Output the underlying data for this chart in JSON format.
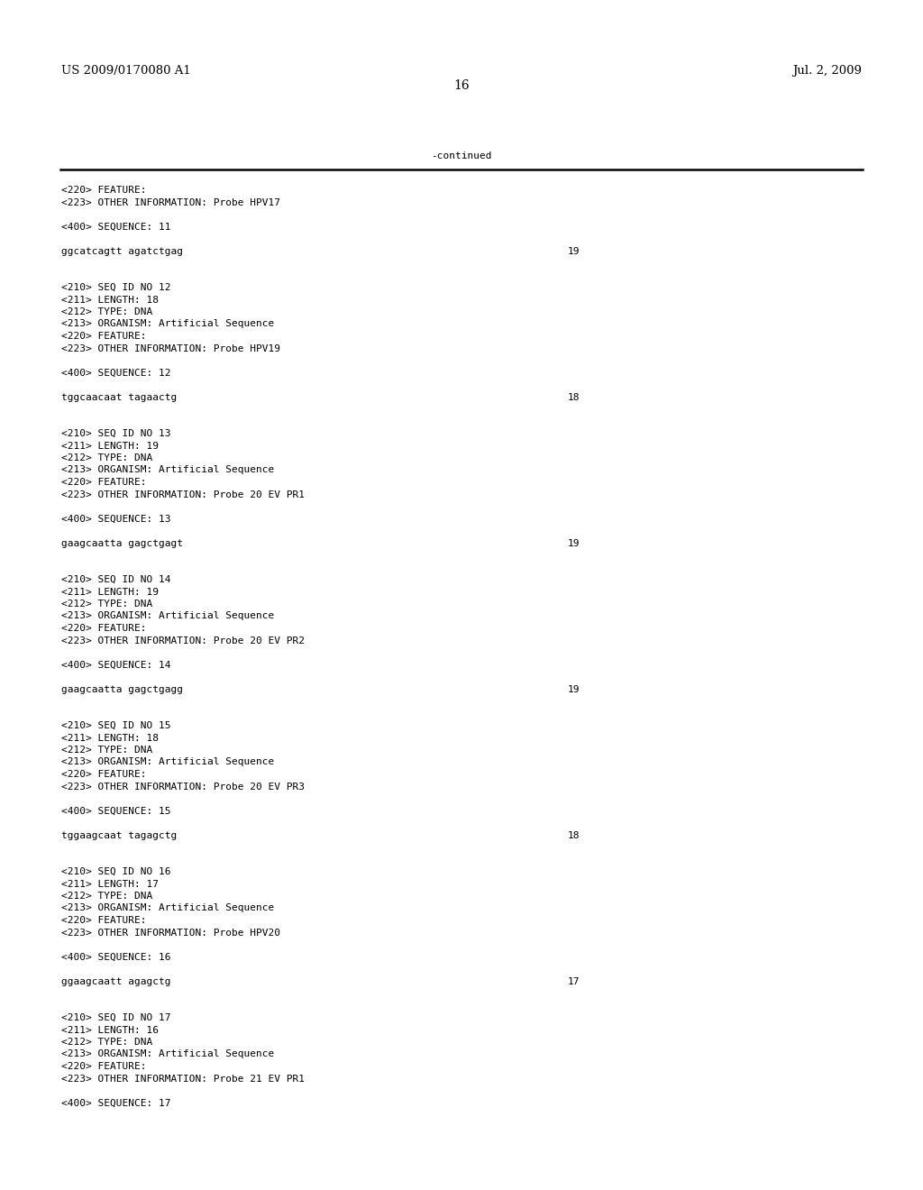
{
  "background_color": "#ffffff",
  "header_left": "US 2009/0170080 A1",
  "header_right": "Jul. 2, 2009",
  "page_number": "16",
  "continued_label": "-continued",
  "header_fontsize": 9.5,
  "mono_fontsize": 8.0,
  "page_num_fontsize": 10,
  "content_lines": [
    {
      "text": "<220> FEATURE:",
      "col": "left"
    },
    {
      "text": "<223> OTHER INFORMATION: Probe HPV17",
      "col": "left"
    },
    {
      "text": "",
      "col": "left"
    },
    {
      "text": "<400> SEQUENCE: 11",
      "col": "left"
    },
    {
      "text": "",
      "col": "left"
    },
    {
      "text": "ggcatcagtt agatctgag",
      "col": "left",
      "num": "19"
    },
    {
      "text": "",
      "col": "left"
    },
    {
      "text": "",
      "col": "left"
    },
    {
      "text": "<210> SEQ ID NO 12",
      "col": "left"
    },
    {
      "text": "<211> LENGTH: 18",
      "col": "left"
    },
    {
      "text": "<212> TYPE: DNA",
      "col": "left"
    },
    {
      "text": "<213> ORGANISM: Artificial Sequence",
      "col": "left"
    },
    {
      "text": "<220> FEATURE:",
      "col": "left"
    },
    {
      "text": "<223> OTHER INFORMATION: Probe HPV19",
      "col": "left"
    },
    {
      "text": "",
      "col": "left"
    },
    {
      "text": "<400> SEQUENCE: 12",
      "col": "left"
    },
    {
      "text": "",
      "col": "left"
    },
    {
      "text": "tggcaacaat tagaactg",
      "col": "left",
      "num": "18"
    },
    {
      "text": "",
      "col": "left"
    },
    {
      "text": "",
      "col": "left"
    },
    {
      "text": "<210> SEQ ID NO 13",
      "col": "left"
    },
    {
      "text": "<211> LENGTH: 19",
      "col": "left"
    },
    {
      "text": "<212> TYPE: DNA",
      "col": "left"
    },
    {
      "text": "<213> ORGANISM: Artificial Sequence",
      "col": "left"
    },
    {
      "text": "<220> FEATURE:",
      "col": "left"
    },
    {
      "text": "<223> OTHER INFORMATION: Probe 20 EV PR1",
      "col": "left"
    },
    {
      "text": "",
      "col": "left"
    },
    {
      "text": "<400> SEQUENCE: 13",
      "col": "left"
    },
    {
      "text": "",
      "col": "left"
    },
    {
      "text": "gaagcaatta gagctgagt",
      "col": "left",
      "num": "19"
    },
    {
      "text": "",
      "col": "left"
    },
    {
      "text": "",
      "col": "left"
    },
    {
      "text": "<210> SEQ ID NO 14",
      "col": "left"
    },
    {
      "text": "<211> LENGTH: 19",
      "col": "left"
    },
    {
      "text": "<212> TYPE: DNA",
      "col": "left"
    },
    {
      "text": "<213> ORGANISM: Artificial Sequence",
      "col": "left"
    },
    {
      "text": "<220> FEATURE:",
      "col": "left"
    },
    {
      "text": "<223> OTHER INFORMATION: Probe 20 EV PR2",
      "col": "left"
    },
    {
      "text": "",
      "col": "left"
    },
    {
      "text": "<400> SEQUENCE: 14",
      "col": "left"
    },
    {
      "text": "",
      "col": "left"
    },
    {
      "text": "gaagcaatta gagctgagg",
      "col": "left",
      "num": "19"
    },
    {
      "text": "",
      "col": "left"
    },
    {
      "text": "",
      "col": "left"
    },
    {
      "text": "<210> SEQ ID NO 15",
      "col": "left"
    },
    {
      "text": "<211> LENGTH: 18",
      "col": "left"
    },
    {
      "text": "<212> TYPE: DNA",
      "col": "left"
    },
    {
      "text": "<213> ORGANISM: Artificial Sequence",
      "col": "left"
    },
    {
      "text": "<220> FEATURE:",
      "col": "left"
    },
    {
      "text": "<223> OTHER INFORMATION: Probe 20 EV PR3",
      "col": "left"
    },
    {
      "text": "",
      "col": "left"
    },
    {
      "text": "<400> SEQUENCE: 15",
      "col": "left"
    },
    {
      "text": "",
      "col": "left"
    },
    {
      "text": "tggaagcaat tagagctg",
      "col": "left",
      "num": "18"
    },
    {
      "text": "",
      "col": "left"
    },
    {
      "text": "",
      "col": "left"
    },
    {
      "text": "<210> SEQ ID NO 16",
      "col": "left"
    },
    {
      "text": "<211> LENGTH: 17",
      "col": "left"
    },
    {
      "text": "<212> TYPE: DNA",
      "col": "left"
    },
    {
      "text": "<213> ORGANISM: Artificial Sequence",
      "col": "left"
    },
    {
      "text": "<220> FEATURE:",
      "col": "left"
    },
    {
      "text": "<223> OTHER INFORMATION: Probe HPV20",
      "col": "left"
    },
    {
      "text": "",
      "col": "left"
    },
    {
      "text": "<400> SEQUENCE: 16",
      "col": "left"
    },
    {
      "text": "",
      "col": "left"
    },
    {
      "text": "ggaagcaatt agagctg",
      "col": "left",
      "num": "17"
    },
    {
      "text": "",
      "col": "left"
    },
    {
      "text": "",
      "col": "left"
    },
    {
      "text": "<210> SEQ ID NO 17",
      "col": "left"
    },
    {
      "text": "<211> LENGTH: 16",
      "col": "left"
    },
    {
      "text": "<212> TYPE: DNA",
      "col": "left"
    },
    {
      "text": "<213> ORGANISM: Artificial Sequence",
      "col": "left"
    },
    {
      "text": "<220> FEATURE:",
      "col": "left"
    },
    {
      "text": "<223> OTHER INFORMATION: Probe 21 EV PR1",
      "col": "left"
    },
    {
      "text": "",
      "col": "left"
    },
    {
      "text": "<400> SEQUENCE: 17",
      "col": "left"
    }
  ]
}
